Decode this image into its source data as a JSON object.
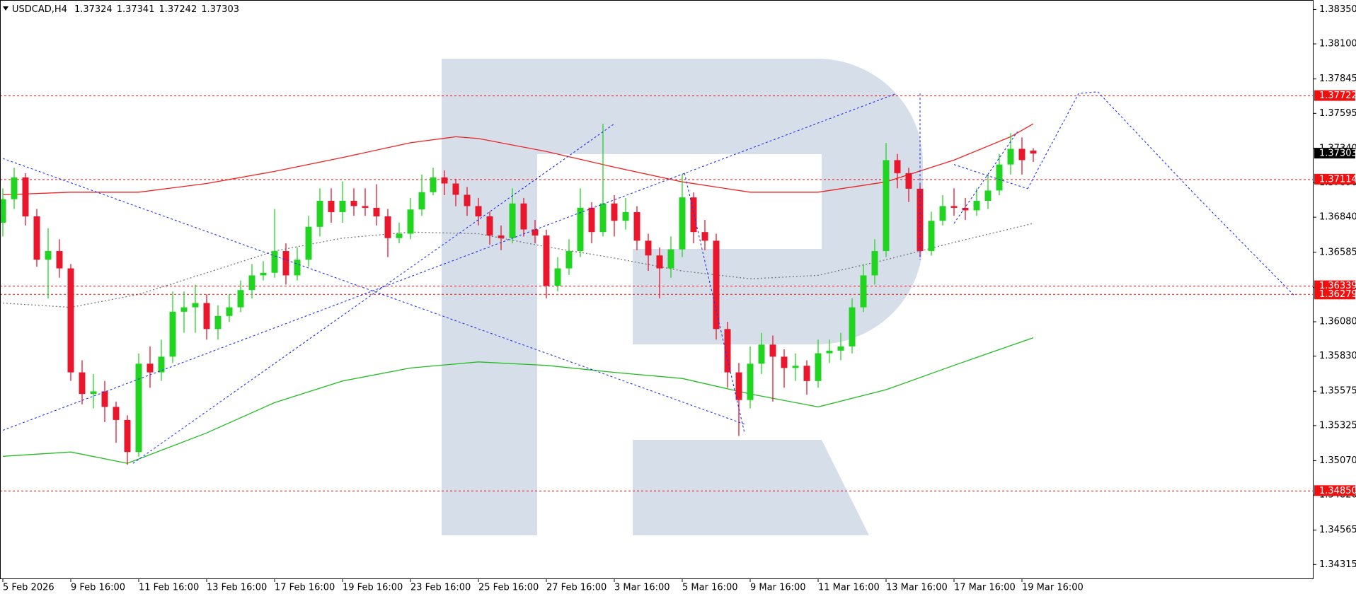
{
  "chart_data": {
    "type": "candlestick",
    "symbol": "USDCAD,H4",
    "categories": [
      "5 Feb 2026",
      null,
      null,
      null,
      null,
      null,
      "9 Feb 16:00",
      null,
      null,
      null,
      null,
      null,
      "11 Feb 16:00",
      null,
      null,
      null,
      null,
      null,
      "13 Feb 16:00",
      null,
      null,
      null,
      null,
      null,
      "17 Feb 16:00",
      null,
      null,
      null,
      null,
      null,
      "19 Feb 16:00",
      null,
      null,
      null,
      null,
      null,
      "23 Feb 16:00",
      null,
      null,
      null,
      null,
      null,
      "25 Feb 16:00",
      null,
      null,
      null,
      null,
      null,
      "27 Feb 16:00",
      null,
      null,
      null,
      null,
      null,
      "3 Mar 16:00",
      null,
      null,
      null,
      null,
      null,
      "5 Mar 16:00",
      null,
      null,
      null,
      null,
      null,
      "9 Mar 16:00",
      null,
      null,
      null,
      null,
      null,
      "11 Mar 16:00",
      null,
      null,
      null,
      null,
      null,
      "13 Mar 16:00",
      null,
      null,
      null,
      null,
      null,
      "17 Mar 16:00",
      null,
      null,
      null,
      null,
      null,
      "19 Mar 16:00",
      null
    ],
    "open": [
      1.368,
      1.36971,
      1.37129,
      1.36846,
      1.36531,
      1.36594,
      1.36468,
      1.35712,
      1.35555,
      1.35574,
      1.35461,
      1.35366,
      1.35133,
      1.35775,
      1.35712,
      1.35826,
      1.36153,
      1.36185,
      1.36216,
      1.36027,
      1.36122,
      1.36185,
      1.3631,
      1.36417,
      1.36436,
      1.36594,
      1.36417,
      1.36531,
      1.3677,
      1.36959,
      1.36877,
      1.36959,
      1.36921,
      1.36908,
      1.36846,
      1.36688,
      1.3672,
      1.36896,
      1.37022,
      1.37129,
      1.37085,
      1.37003,
      1.36921,
      1.36846,
      1.36707,
      1.36688,
      1.3694,
      1.36751,
      1.36707,
      1.36342,
      1.36468,
      1.36594,
      1.36909,
      1.36732,
      1.3694,
      1.36814,
      1.36877,
      1.36669,
      1.36562,
      1.36468,
      1.36606,
      1.36984,
      1.36732,
      1.36669,
      1.36027,
      1.35712,
      1.35511,
      1.35775,
      1.35914,
      1.35826,
      1.35744,
      1.3576,
      1.35649,
      1.35851,
      1.3587,
      1.35901,
      1.36185,
      1.36417,
      1.36594,
      1.37255,
      1.3716,
      1.37047,
      1.36594,
      1.36814,
      1.36921,
      1.36908,
      1.3689,
      1.36959,
      1.37034,
      1.37223,
      1.37337,
      1.37324
    ],
    "high": [
      1.3705,
      1.372,
      1.3716,
      1.369,
      1.3676,
      1.3668,
      1.365,
      1.358,
      1.357,
      1.3565,
      1.355,
      1.354,
      1.3585,
      1.359,
      1.3595,
      1.363,
      1.363,
      1.3635,
      1.3628,
      1.362,
      1.3628,
      1.3638,
      1.365,
      1.3652,
      1.369,
      1.3665,
      1.3662,
      1.3685,
      1.3705,
      1.3705,
      1.371,
      1.3705,
      1.3705,
      1.3708,
      1.369,
      1.368,
      1.3698,
      1.3715,
      1.372,
      1.3718,
      1.3712,
      1.3706,
      1.3698,
      1.3688,
      1.3678,
      1.3705,
      1.3698,
      1.3682,
      1.3675,
      1.3655,
      1.3668,
      1.3705,
      1.3695,
      1.37519,
      1.37,
      1.3698,
      1.3692,
      1.3672,
      1.3662,
      1.367,
      1.3715,
      1.3702,
      1.3682,
      1.3672,
      1.3608,
      1.3578,
      1.359,
      1.36,
      1.3598,
      1.3588,
      1.3585,
      1.358,
      1.3595,
      1.3595,
      1.36,
      1.3625,
      1.365,
      1.3668,
      1.3738,
      1.373,
      1.372,
      1.3708,
      1.3688,
      1.37,
      1.3705,
      1.3698,
      1.3705,
      1.3715,
      1.373,
      1.3745,
      1.3742,
      1.37341
    ],
    "low": [
      1.367,
      1.369,
      1.3678,
      1.3648,
      1.3625,
      1.364,
      1.3565,
      1.3548,
      1.3545,
      1.3535,
      1.352,
      1.3504,
      1.351,
      1.356,
      1.3565,
      1.3578,
      1.36,
      1.36,
      1.3595,
      1.3595,
      1.3608,
      1.3615,
      1.3625,
      1.3638,
      1.364,
      1.3635,
      1.3638,
      1.3648,
      1.367,
      1.368,
      1.368,
      1.3685,
      1.3685,
      1.3678,
      1.3655,
      1.3665,
      1.3668,
      1.3685,
      1.37,
      1.37,
      1.3692,
      1.3685,
      1.3678,
      1.3664,
      1.366,
      1.3665,
      1.367,
      1.3665,
      1.3625,
      1.363,
      1.3642,
      1.3655,
      1.3665,
      1.367,
      1.367,
      1.3675,
      1.366,
      1.3645,
      1.3625,
      1.364,
      1.3655,
      1.3665,
      1.366,
      1.3595,
      1.356,
      1.3525,
      1.3545,
      1.357,
      1.355,
      1.356,
      1.3565,
      1.3555,
      1.356,
      1.3578,
      1.358,
      1.3585,
      1.3615,
      1.3635,
      1.3655,
      1.3705,
      1.3695,
      1.3655,
      1.3656,
      1.3678,
      1.3685,
      1.3682,
      1.3685,
      1.369,
      1.37,
      1.3715,
      1.3715,
      1.37242
    ],
    "close": [
      1.36971,
      1.37129,
      1.36846,
      1.36531,
      1.36594,
      1.36468,
      1.35712,
      1.35555,
      1.35574,
      1.35461,
      1.35366,
      1.35133,
      1.35775,
      1.35712,
      1.35826,
      1.36153,
      1.36185,
      1.36216,
      1.36027,
      1.36122,
      1.36185,
      1.3631,
      1.36417,
      1.36436,
      1.36594,
      1.36417,
      1.36531,
      1.3677,
      1.36959,
      1.36877,
      1.36959,
      1.36921,
      1.36908,
      1.36846,
      1.36688,
      1.3672,
      1.36896,
      1.37022,
      1.37129,
      1.37085,
      1.37003,
      1.36921,
      1.36846,
      1.36707,
      1.36688,
      1.3694,
      1.36751,
      1.36707,
      1.36342,
      1.36468,
      1.36594,
      1.36909,
      1.36732,
      1.3694,
      1.36814,
      1.36877,
      1.36669,
      1.36562,
      1.36468,
      1.36606,
      1.36984,
      1.36732,
      1.36669,
      1.36027,
      1.35712,
      1.35511,
      1.35775,
      1.35914,
      1.35826,
      1.35744,
      1.3576,
      1.35649,
      1.35851,
      1.3587,
      1.35901,
      1.36185,
      1.36417,
      1.36594,
      1.37255,
      1.3716,
      1.37047,
      1.36594,
      1.36814,
      1.36921,
      1.36908,
      1.3689,
      1.36959,
      1.37034,
      1.37223,
      1.37337,
      1.37255,
      1.37303
    ],
    "bull_color": "#22d422",
    "bear_color": "#e8172c",
    "ylim": [
      1.34214,
      1.38419
    ],
    "yticks": [
      {
        "value": 1.3835,
        "label": "1.38350"
      },
      {
        "value": 1.381,
        "label": "1.38100"
      },
      {
        "value": 1.37845,
        "label": "1.37845"
      },
      {
        "value": 1.37595,
        "label": "1.37595"
      },
      {
        "value": 1.3734,
        "label": "1.37340"
      },
      {
        "value": 1.3709,
        "label": "1.37090"
      },
      {
        "value": 1.3684,
        "label": "1.36840"
      },
      {
        "value": 1.36585,
        "label": "1.36585"
      },
      {
        "value": 1.3633,
        "label": "1.36330"
      },
      {
        "value": 1.3608,
        "label": "1.36080"
      },
      {
        "value": 1.3583,
        "label": "1.35830"
      },
      {
        "value": 1.35575,
        "label": "1.35575"
      },
      {
        "value": 1.35325,
        "label": "1.35325"
      },
      {
        "value": 1.3507,
        "label": "1.35070"
      },
      {
        "value": 1.3482,
        "label": "1.34820"
      },
      {
        "value": 1.34565,
        "label": "1.34565"
      },
      {
        "value": 1.34315,
        "label": "1.34315"
      }
    ],
    "lines": [
      {
        "color": "#ee2222",
        "dashed": false,
        "x": [
          0,
          6,
          12,
          18,
          24,
          30,
          36,
          40,
          42,
          48,
          54,
          60,
          66,
          72,
          78,
          84,
          89,
          91
        ],
        "values": [
          1.37003,
          1.37022,
          1.37022,
          1.37085,
          1.37173,
          1.37274,
          1.37381,
          1.37425,
          1.37412,
          1.37318,
          1.37204,
          1.37097,
          1.37022,
          1.37022,
          1.37097,
          1.37255,
          1.37425,
          1.37519
        ]
      },
      {
        "color": "#22bb22",
        "dashed": false,
        "x": [
          0,
          6,
          11,
          18,
          24,
          30,
          36,
          42,
          48,
          54,
          60,
          66,
          72,
          78,
          84,
          91
        ],
        "values": [
          1.35102,
          1.35133,
          1.35051,
          1.35272,
          1.35492,
          1.35649,
          1.35744,
          1.35788,
          1.35763,
          1.35712,
          1.35668,
          1.35555,
          1.35461,
          1.35586,
          1.35763,
          1.35964
        ]
      },
      {
        "color": "#777777",
        "dashed": true,
        "x": [
          0,
          6,
          12,
          18,
          24,
          30,
          36,
          42,
          48,
          54,
          60,
          66,
          72,
          78,
          84,
          91
        ],
        "values": [
          1.36216,
          1.36185,
          1.36279,
          1.36436,
          1.36594,
          1.36688,
          1.36732,
          1.3672,
          1.36625,
          1.36543,
          1.36449,
          1.36392,
          1.36417,
          1.36531,
          1.36657,
          1.36795
        ]
      }
    ],
    "levels": {
      "color": "#f01010",
      "values": [
        1.37722,
        1.37114,
        1.36339,
        1.36279,
        1.3485
      ],
      "value_labels": [
        "1.37722",
        "1.37114",
        "1.36339",
        "1.36279",
        "1.34850"
      ]
    },
    "current_color": "#000000",
    "drawings": {
      "color": "#2233ee",
      "paths": [
        {
          "x": [
            0,
            65.5
          ],
          "y": [
            1.37267,
            1.35335
          ]
        },
        {
          "x": [
            0,
            78.9
          ],
          "y": [
            1.35291,
            1.37739
          ]
        },
        {
          "x": [
            11.5,
            54
          ],
          "y": [
            1.35051,
            1.37519
          ]
        },
        {
          "x": [
            60.2,
            65.5
          ],
          "y": [
            1.3716,
            1.35272
          ]
        },
        {
          "x": [
            81,
            81
          ],
          "y": [
            1.37739,
            1.36531
          ]
        },
        {
          "x": [
            84,
            90.5
          ],
          "y": [
            1.37223,
            1.37047
          ]
        },
        {
          "x": [
            84,
            89.6
          ],
          "y": [
            1.36795,
            1.37462
          ]
        },
        {
          "x": [
            90.5,
            95,
            96.7,
            105.3,
            114.1
          ],
          "y": [
            1.37047,
            1.37739,
            1.37752,
            1.37003,
            1.36266
          ]
        }
      ]
    }
  }
}
